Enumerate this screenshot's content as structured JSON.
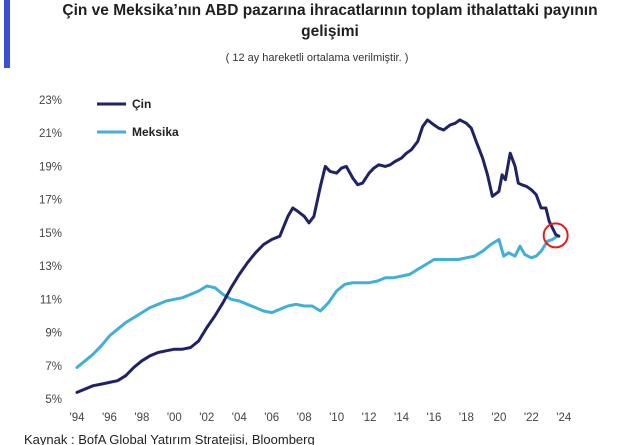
{
  "header": {
    "title_line1": "Çin ve Meksika’nın ABD pazarına ihracatlarının toplam ithalattaki payının",
    "title_line2": "gelişimi",
    "subtitle": "( 12 ay hareketli ortalama verilmiştir. )"
  },
  "footer": {
    "source": "Kaynak : BofA Global Yatırım Stratejisi, Bloomberg"
  },
  "colors": {
    "accent": "#3a4ed6",
    "china": "#1f2366",
    "mexico": "#41b0d8",
    "highlight": "#e02020"
  },
  "chart_data": {
    "type": "line",
    "title": "Çin ve Meksika’nın ABD pazarına ihracatlarının toplam ithalattaki payının gelişimi",
    "subtitle": "( 12 ay hareketli ortalama verilmiştir. )",
    "xlabel": "",
    "ylabel": "",
    "xlim": [
      1994,
      2025
    ],
    "ylim": [
      5,
      23
    ],
    "x_ticks": [
      1994,
      1996,
      1998,
      2000,
      2002,
      2004,
      2006,
      2008,
      2010,
      2012,
      2014,
      2016,
      2018,
      2020,
      2022,
      2024
    ],
    "x_tick_labels": [
      "'94",
      "'96",
      "'98",
      "'00",
      "'02",
      "'04",
      "'06",
      "'08",
      "'10",
      "'12",
      "'14",
      "'16",
      "'18",
      "'20",
      "'22",
      "'24"
    ],
    "y_ticks": [
      5,
      7,
      9,
      11,
      13,
      15,
      17,
      19,
      21,
      23
    ],
    "y_tick_labels": [
      "5%",
      "7%",
      "9%",
      "11%",
      "13%",
      "15%",
      "17%",
      "19%",
      "21%",
      "23%"
    ],
    "grid": false,
    "legend_position": "top-left",
    "series": [
      {
        "name": "Çin",
        "color": "#1f2366",
        "x": [
          1994.0,
          1994.5,
          1995.0,
          1995.5,
          1996.0,
          1996.5,
          1997.0,
          1997.5,
          1998.0,
          1998.5,
          1999.0,
          1999.5,
          2000.0,
          2000.5,
          2001.0,
          2001.5,
          2002.0,
          2002.5,
          2003.0,
          2003.5,
          2004.0,
          2004.5,
          2005.0,
          2005.5,
          2006.0,
          2006.5,
          2007.0,
          2007.3,
          2007.6,
          2008.0,
          2008.3,
          2008.6,
          2009.0,
          2009.3,
          2009.6,
          2010.0,
          2010.3,
          2010.6,
          2011.0,
          2011.3,
          2011.6,
          2012.0,
          2012.3,
          2012.6,
          2013.0,
          2013.3,
          2013.6,
          2014.0,
          2014.3,
          2014.6,
          2015.0,
          2015.3,
          2015.6,
          2016.0,
          2016.3,
          2016.6,
          2017.0,
          2017.3,
          2017.6,
          2018.0,
          2018.3,
          2018.6,
          2019.0,
          2019.3,
          2019.6,
          2020.0,
          2020.2,
          2020.4,
          2020.7,
          2021.0,
          2021.2,
          2021.4,
          2021.7,
          2022.0,
          2022.3,
          2022.6,
          2022.9,
          2023.1,
          2023.3,
          2023.5,
          2023.7
        ],
        "values": [
          5.4,
          5.6,
          5.8,
          5.9,
          6.0,
          6.1,
          6.4,
          6.9,
          7.3,
          7.6,
          7.8,
          7.9,
          8.0,
          8.0,
          8.1,
          8.5,
          9.3,
          10.0,
          10.8,
          11.7,
          12.5,
          13.2,
          13.8,
          14.3,
          14.6,
          14.8,
          16.0,
          16.5,
          16.3,
          16.0,
          15.6,
          16.0,
          17.8,
          19.0,
          18.7,
          18.6,
          18.9,
          19.0,
          18.3,
          17.9,
          18.0,
          18.6,
          18.9,
          19.1,
          19.0,
          19.1,
          19.3,
          19.5,
          19.8,
          20.0,
          20.5,
          21.4,
          21.8,
          21.5,
          21.3,
          21.2,
          21.5,
          21.6,
          21.8,
          21.6,
          21.3,
          20.5,
          19.5,
          18.5,
          17.2,
          17.5,
          18.5,
          18.2,
          19.8,
          19.0,
          18.0,
          17.9,
          17.8,
          17.6,
          17.3,
          16.5,
          16.5,
          15.7,
          15.3,
          14.9,
          14.8
        ]
      },
      {
        "name": "Meksika",
        "color": "#41b0d8",
        "x": [
          1994.0,
          1994.5,
          1995.0,
          1995.5,
          1996.0,
          1996.5,
          1997.0,
          1997.5,
          1998.0,
          1998.5,
          1999.0,
          1999.5,
          2000.0,
          2000.5,
          2001.0,
          2001.5,
          2002.0,
          2002.5,
          2003.0,
          2003.5,
          2004.0,
          2004.5,
          2005.0,
          2005.5,
          2006.0,
          2006.5,
          2007.0,
          2007.5,
          2008.0,
          2008.5,
          2009.0,
          2009.5,
          2010.0,
          2010.5,
          2011.0,
          2011.5,
          2012.0,
          2012.5,
          2013.0,
          2013.5,
          2014.0,
          2014.5,
          2015.0,
          2015.5,
          2016.0,
          2016.5,
          2017.0,
          2017.5,
          2018.0,
          2018.5,
          2019.0,
          2019.5,
          2020.0,
          2020.3,
          2020.6,
          2021.0,
          2021.3,
          2021.6,
          2022.0,
          2022.3,
          2022.6,
          2023.0,
          2023.3,
          2023.6
        ],
        "values": [
          6.9,
          7.3,
          7.7,
          8.2,
          8.8,
          9.2,
          9.6,
          9.9,
          10.2,
          10.5,
          10.7,
          10.9,
          11.0,
          11.1,
          11.3,
          11.5,
          11.8,
          11.7,
          11.3,
          11.0,
          10.9,
          10.7,
          10.5,
          10.3,
          10.2,
          10.4,
          10.6,
          10.7,
          10.6,
          10.6,
          10.3,
          10.8,
          11.5,
          11.9,
          12.0,
          12.0,
          12.0,
          12.1,
          12.3,
          12.3,
          12.4,
          12.5,
          12.8,
          13.1,
          13.4,
          13.4,
          13.4,
          13.4,
          13.5,
          13.6,
          13.9,
          14.3,
          14.6,
          13.6,
          13.8,
          13.6,
          14.2,
          13.7,
          13.5,
          13.6,
          13.9,
          14.5,
          14.6,
          14.8
        ]
      }
    ],
    "annotation": {
      "type": "circle",
      "x": 2023.5,
      "y": 14.85,
      "color": "#e02020"
    }
  }
}
